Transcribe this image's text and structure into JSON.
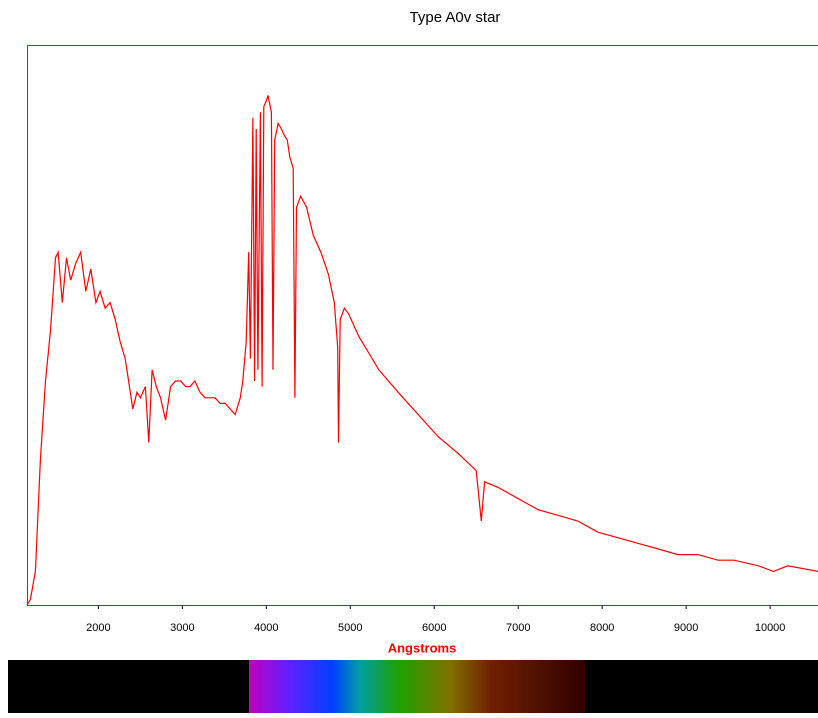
{
  "chart_data": {
    "type": "line",
    "title": "Type A0v star",
    "x_label": "Angstroms",
    "x": [
      1150,
      1190,
      1250,
      1310,
      1370,
      1430,
      1490,
      1520,
      1570,
      1620,
      1670,
      1730,
      1790,
      1850,
      1910,
      1970,
      2020,
      2080,
      2140,
      2200,
      2260,
      2320,
      2360,
      2410,
      2460,
      2500,
      2560,
      2600,
      2640,
      2690,
      2740,
      2800,
      2860,
      2920,
      2980,
      3040,
      3090,
      3150,
      3210,
      3270,
      3330,
      3390,
      3450,
      3510,
      3570,
      3630,
      3690,
      3720,
      3760,
      3790,
      3810,
      3840,
      3860,
      3880,
      3900,
      3930,
      3950,
      3970,
      4000,
      4020,
      4060,
      4080,
      4100,
      4140,
      4180,
      4210,
      4250,
      4280,
      4320,
      4340,
      4360,
      4410,
      4480,
      4560,
      4650,
      4740,
      4810,
      4850,
      4860,
      4880,
      4930,
      4980,
      5100,
      5220,
      5340,
      5570,
      5810,
      6050,
      6290,
      6500,
      6560,
      6600,
      6760,
      7000,
      7240,
      7480,
      7710,
      7950,
      8190,
      8430,
      8670,
      8900,
      9140,
      9380,
      9570,
      9860,
      10040,
      10210,
      10570
    ],
    "series": [
      {
        "color": "#ff0000",
        "values": [
          0,
          1,
          6,
          26,
          40,
          49,
          62,
          63,
          54,
          62,
          58,
          61,
          63,
          56,
          60,
          54,
          56,
          53,
          54,
          51,
          47,
          44,
          40,
          35,
          38,
          37,
          39,
          29,
          42,
          39,
          37,
          33,
          39,
          40,
          40,
          39,
          39,
          40,
          38,
          37,
          37,
          37,
          36,
          36,
          35,
          34,
          37,
          40,
          47,
          63,
          44,
          87,
          40,
          85,
          42,
          88,
          39,
          89,
          90,
          91,
          88,
          42,
          83,
          86,
          85,
          84,
          83,
          80,
          78,
          37,
          71,
          73,
          71,
          66,
          63,
          59,
          54,
          46,
          29,
          51,
          53,
          52,
          48,
          45,
          42,
          38,
          34,
          30,
          27,
          24,
          15,
          22,
          21,
          19,
          17,
          16,
          15,
          13,
          12,
          11,
          10,
          9,
          9,
          8,
          8,
          7,
          6,
          7,
          6
        ]
      }
    ],
    "xlim": [
      1150,
      10570
    ],
    "ylim": [
      0,
      100
    ],
    "xticks": [
      2000,
      3000,
      4000,
      5000,
      6000,
      7000,
      8000,
      9000,
      10000
    ]
  }
}
